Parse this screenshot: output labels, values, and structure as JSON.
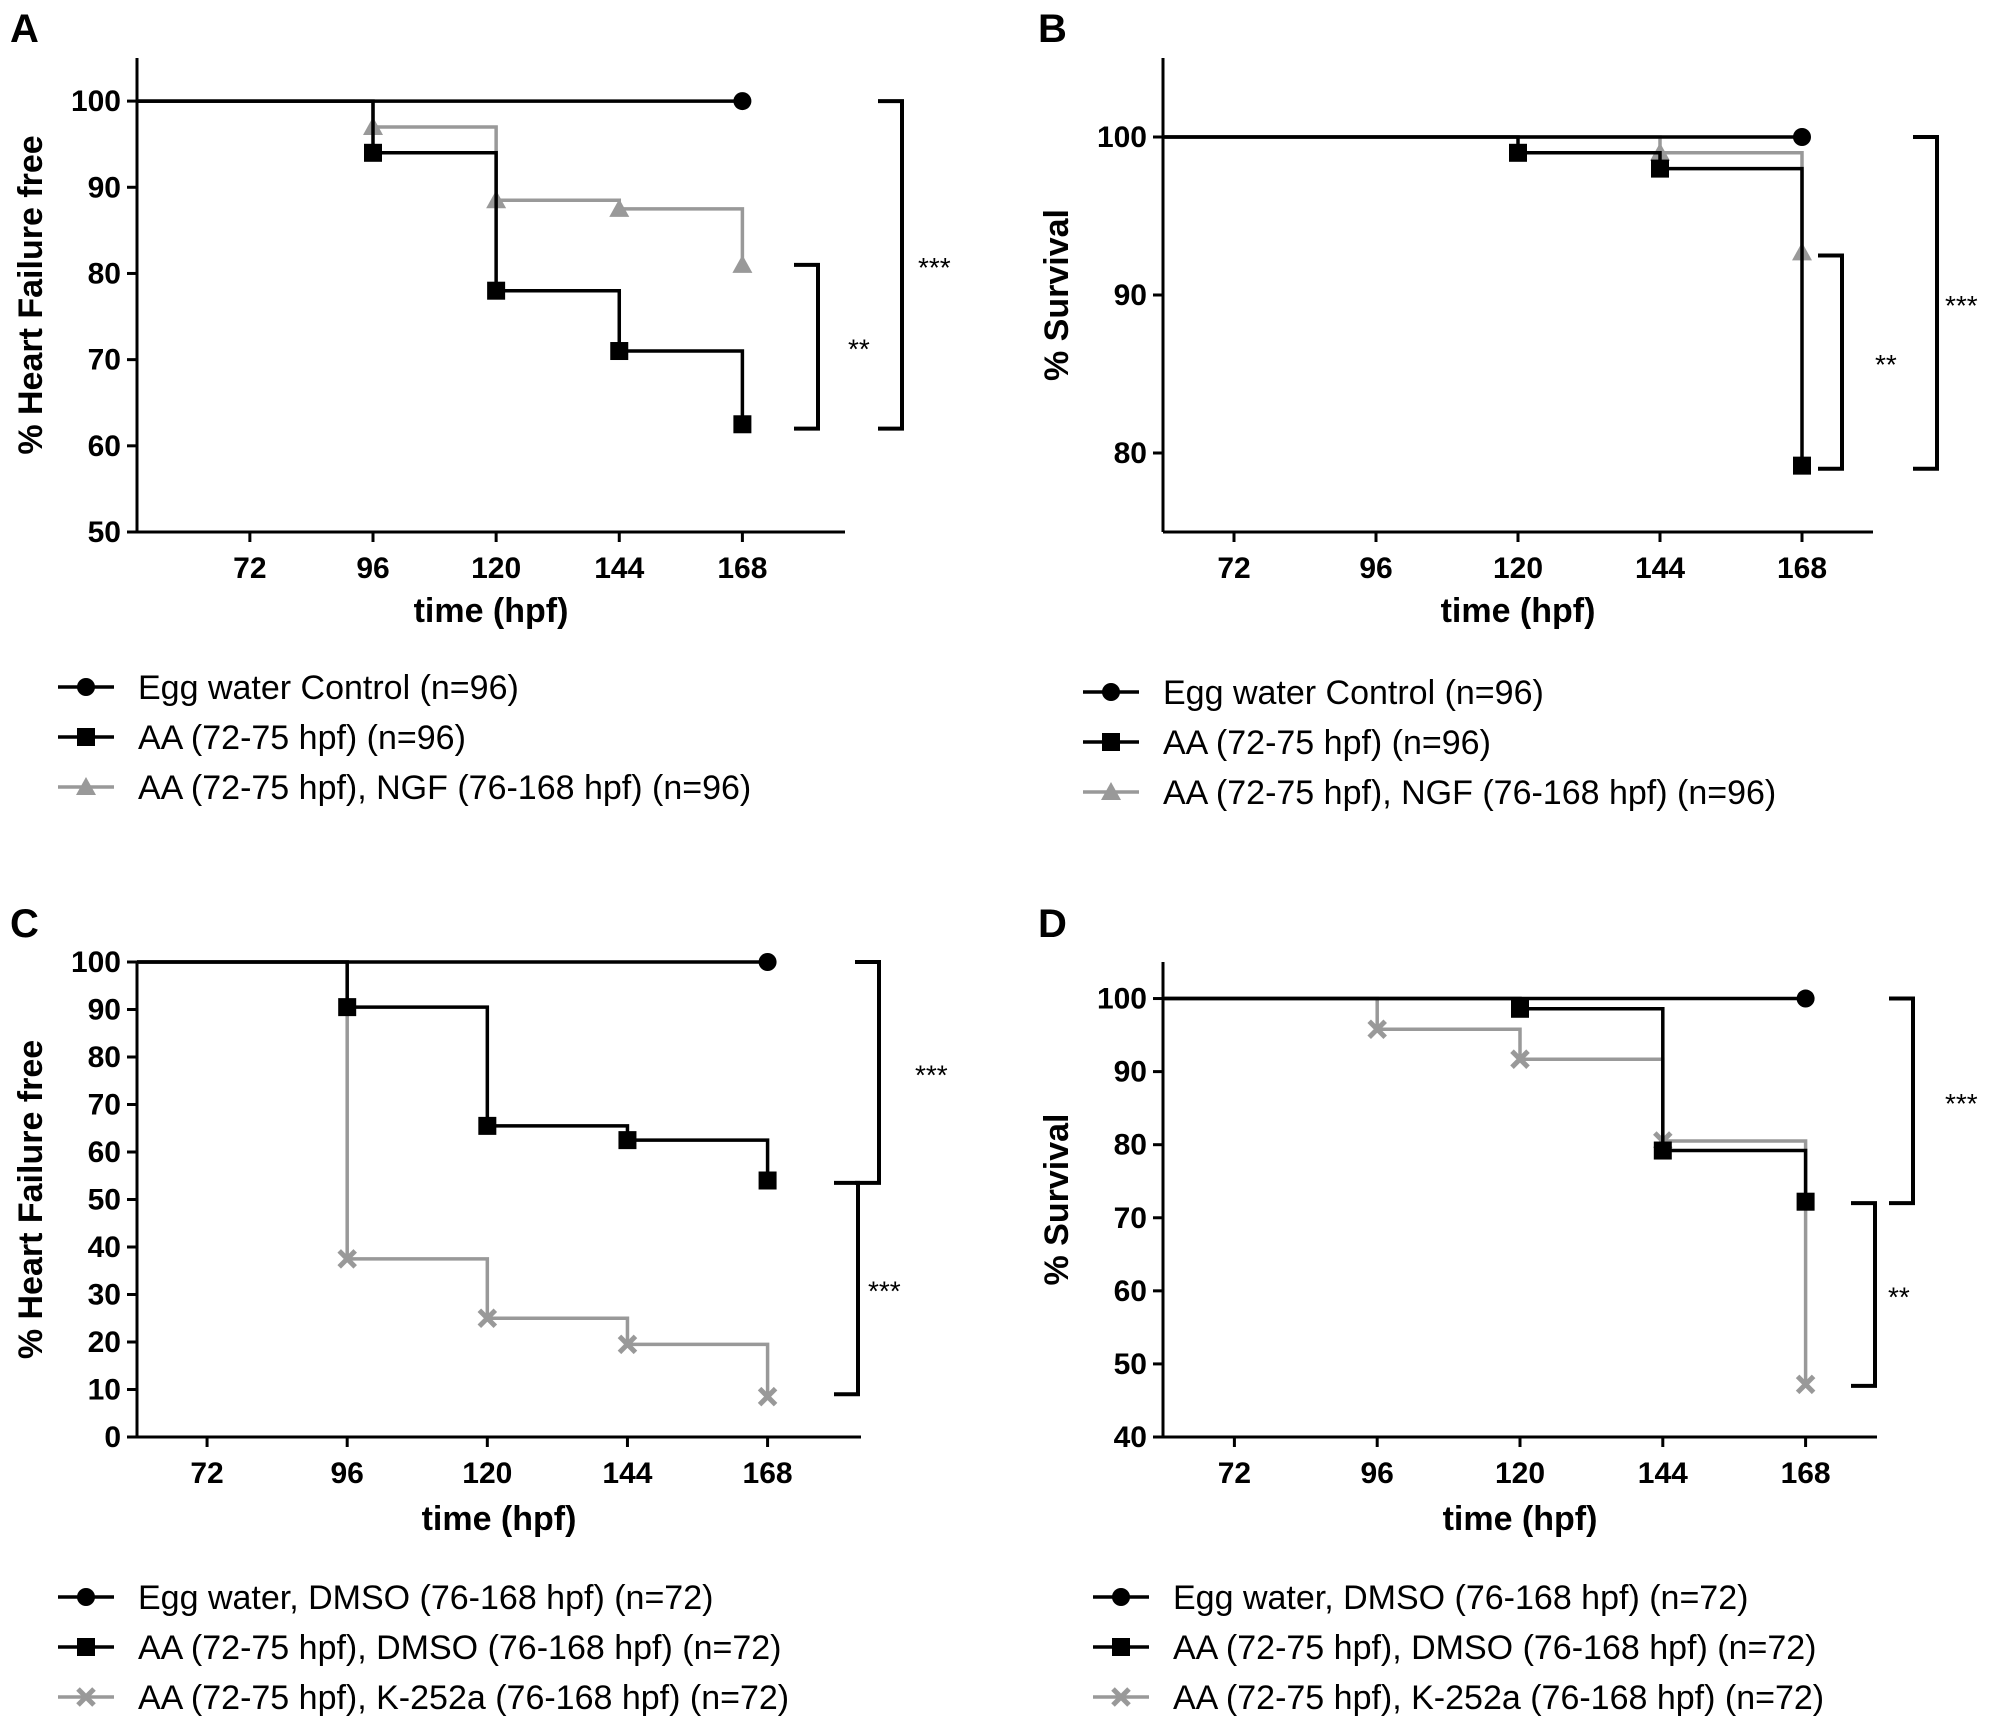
{
  "chart_data": [
    {
      "id": "A",
      "type": "line",
      "panel_label": "A",
      "xlabel": "time (hpf)",
      "ylabel": "% Heart Failure free",
      "xlim": [
        50,
        188
      ],
      "ylim": [
        50,
        105
      ],
      "xticks": [
        72,
        96,
        120,
        144,
        168
      ],
      "yticks": [
        50,
        60,
        70,
        80,
        90,
        100
      ],
      "step": true,
      "grid": false,
      "legend_position": "bottom",
      "series": [
        {
          "name": "Egg water Control (n=96)",
          "color": "#000000",
          "marker": "circle",
          "x": [
            50,
            168
          ],
          "y": [
            100,
            100
          ],
          "marker_x": [
            168
          ],
          "marker_y": [
            100
          ]
        },
        {
          "name": "AA (72-75 hpf) (n=96)",
          "color": "#000000",
          "marker": "square",
          "x": [
            50,
            96,
            120,
            144,
            168
          ],
          "y": [
            100,
            94,
            78,
            71,
            62.5
          ],
          "marker_x": [
            96,
            120,
            144,
            168
          ],
          "marker_y": [
            94,
            78,
            71,
            62.5
          ]
        },
        {
          "name": "AA (72-75 hpf), NGF (76-168 hpf) (n=96)",
          "color": "#999999",
          "marker": "triangle",
          "x": [
            50,
            96,
            120,
            144,
            168
          ],
          "y": [
            100,
            97,
            88.5,
            87.5,
            81
          ],
          "marker_x": [
            96,
            120,
            144,
            168
          ],
          "marker_y": [
            97,
            88.5,
            87.5,
            81
          ]
        }
      ],
      "brackets": [
        {
          "label": "**",
          "y_top": 81,
          "y_bottom": 62
        },
        {
          "label": "***",
          "y_top": 100,
          "y_bottom": 62
        }
      ]
    },
    {
      "id": "B",
      "type": "line",
      "panel_label": "B",
      "xlabel": "time (hpf)",
      "ylabel": "% Survival",
      "xlim": [
        60,
        180
      ],
      "ylim": [
        75,
        105
      ],
      "xticks": [
        72,
        96,
        120,
        144,
        168
      ],
      "yticks": [
        80,
        90,
        100
      ],
      "step": true,
      "grid": false,
      "legend_position": "bottom",
      "series": [
        {
          "name": "Egg water Control (n=96)",
          "color": "#000000",
          "marker": "circle",
          "x": [
            60,
            168
          ],
          "y": [
            100,
            100
          ],
          "marker_x": [
            168
          ],
          "marker_y": [
            100
          ]
        },
        {
          "name": "AA (72-75 hpf) (n=96)",
          "color": "#000000",
          "marker": "square",
          "x": [
            60,
            120,
            144,
            168
          ],
          "y": [
            100,
            99,
            98,
            79.2
          ],
          "marker_x": [
            120,
            144,
            168
          ],
          "marker_y": [
            99,
            98,
            79.2
          ]
        },
        {
          "name": "AA (72-75 hpf), NGF (76-168 hpf) (n=96)",
          "color": "#999999",
          "marker": "triangle",
          "x": [
            60,
            144,
            168
          ],
          "y": [
            100,
            99,
            92.7
          ],
          "marker_x": [
            144,
            168
          ],
          "marker_y": [
            99,
            92.7
          ]
        }
      ],
      "brackets": [
        {
          "label": "**",
          "y_top": 92.5,
          "y_bottom": 79
        },
        {
          "label": "***",
          "y_top": 100,
          "y_bottom": 79
        }
      ]
    },
    {
      "id": "C",
      "type": "line",
      "panel_label": "C",
      "xlabel": "time (hpf)",
      "ylabel": "% Heart Failure free",
      "xlim": [
        60,
        184
      ],
      "ylim": [
        0,
        100
      ],
      "xticks": [
        72,
        96,
        120,
        144,
        168
      ],
      "yticks": [
        0,
        10,
        20,
        30,
        40,
        50,
        60,
        70,
        80,
        90,
        100
      ],
      "step": true,
      "grid": false,
      "legend_position": "bottom",
      "series": [
        {
          "name": "Egg water, DMSO (76-168 hpf) (n=72)",
          "color": "#000000",
          "marker": "circle",
          "x": [
            60,
            168
          ],
          "y": [
            100,
            100
          ],
          "marker_x": [
            168
          ],
          "marker_y": [
            100
          ]
        },
        {
          "name": "AA (72-75 hpf), DMSO (76-168 hpf) (n=72)",
          "color": "#000000",
          "marker": "square",
          "x": [
            60,
            96,
            120,
            144,
            168
          ],
          "y": [
            100,
            90.5,
            65.5,
            62.5,
            54
          ],
          "marker_x": [
            96,
            120,
            144,
            168
          ],
          "marker_y": [
            90.5,
            65.5,
            62.5,
            54
          ]
        },
        {
          "name": "AA (72-75 hpf), K-252a (76-168 hpf) (n=72)",
          "color": "#999999",
          "marker": "cross",
          "x": [
            60,
            96,
            120,
            144,
            168
          ],
          "y": [
            100,
            37.5,
            25,
            19.5,
            8.5
          ],
          "marker_x": [
            96,
            120,
            144,
            168
          ],
          "marker_y": [
            37.5,
            25,
            19.5,
            8.5
          ]
        }
      ],
      "brackets": [
        {
          "label": "***",
          "y_top": 100,
          "y_bottom": 53.5
        },
        {
          "label": "***",
          "y_top": 53.5,
          "y_bottom": 9
        }
      ]
    },
    {
      "id": "D",
      "type": "line",
      "panel_label": "D",
      "xlabel": "time (hpf)",
      "ylabel": "% Survival",
      "xlim": [
        60,
        180
      ],
      "ylim": [
        40,
        105
      ],
      "xticks": [
        72,
        96,
        120,
        144,
        168
      ],
      "yticks": [
        40,
        50,
        60,
        70,
        80,
        90,
        100
      ],
      "step": true,
      "grid": false,
      "legend_position": "bottom",
      "series": [
        {
          "name": "Egg water, DMSO (76-168 hpf) (n=72)",
          "color": "#000000",
          "marker": "circle",
          "x": [
            60,
            168
          ],
          "y": [
            100,
            100
          ],
          "marker_x": [
            168
          ],
          "marker_y": [
            100
          ]
        },
        {
          "name": "AA (72-75 hpf), DMSO (76-168 hpf) (n=72)",
          "color": "#000000",
          "marker": "square",
          "x": [
            60,
            120,
            144,
            168
          ],
          "y": [
            100,
            98.6,
            79.2,
            72.2
          ],
          "marker_x": [
            120,
            144,
            168
          ],
          "marker_y": [
            98.6,
            79.2,
            72.2
          ]
        },
        {
          "name": "AA (72-75 hpf), K-252a (76-168 hpf) (n=72)",
          "color": "#999999",
          "marker": "cross",
          "x": [
            60,
            96,
            120,
            144,
            168
          ],
          "y": [
            100,
            95.8,
            91.7,
            80.5,
            47.2
          ],
          "marker_x": [
            96,
            120,
            144,
            168
          ],
          "marker_y": [
            95.8,
            91.7,
            80.5,
            47.2
          ]
        }
      ],
      "brackets": [
        {
          "label": "***",
          "y_top": 100,
          "y_bottom": 72
        },
        {
          "label": "**",
          "y_top": 72,
          "y_bottom": 47
        }
      ]
    }
  ]
}
